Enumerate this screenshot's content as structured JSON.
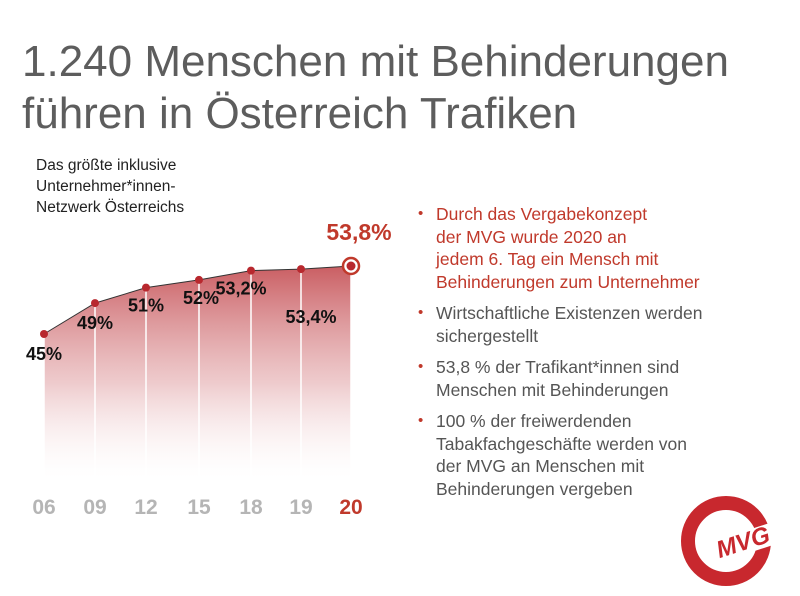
{
  "header": {
    "title_line1": "1.240 Menschen mit Behinderungen",
    "title_line2": "führen in Österreich Trafiken",
    "subtitle_line1": "Das größte inklusive",
    "subtitle_line2": "Unternehmer*innen-",
    "subtitle_line3": "Netzwerk Österreichs"
  },
  "chart_data": {
    "type": "area",
    "categories": [
      "06",
      "09",
      "12",
      "15",
      "18",
      "19",
      "20"
    ],
    "values": [
      45,
      49,
      51,
      52,
      53.2,
      53.4,
      53.8
    ],
    "data_labels": [
      "45%",
      "49%",
      "51%",
      "52%",
      "53,2%",
      "53,4%",
      "53,8%"
    ],
    "highlight_index": 6,
    "ylim": [
      40,
      55
    ],
    "title": "",
    "xlabel": "",
    "ylabel": "",
    "grid": false,
    "colors": {
      "marker": "#b8282e",
      "highlight": "#c0392b",
      "fill_top": "#b8282e",
      "axis_label": "#b5b5b5"
    }
  },
  "bullets": [
    {
      "lines": [
        "Durch das Vergabekonzept",
        "der MVG wurde 2020 an",
        "jedem 6. Tag ein Mensch mit",
        "Behinderungen zum Unternehmer"
      ],
      "highlight": true
    },
    {
      "lines": [
        "Wirtschaftliche Existenzen werden",
        "sichergestellt"
      ],
      "highlight": false
    },
    {
      "lines": [
        "53,8 % der Trafikant*innen sind",
        "Menschen mit Behinderungen"
      ],
      "highlight": false
    },
    {
      "lines": [
        "100 % der freiwerdenden",
        "Tabakfachgeschäfte werden von",
        "der MVG an Menschen mit",
        "Behinderungen vergeben"
      ],
      "highlight": false
    }
  ],
  "logo": {
    "text": "MVG",
    "icon": "mvg-logo-icon",
    "color": "#c8282e"
  }
}
